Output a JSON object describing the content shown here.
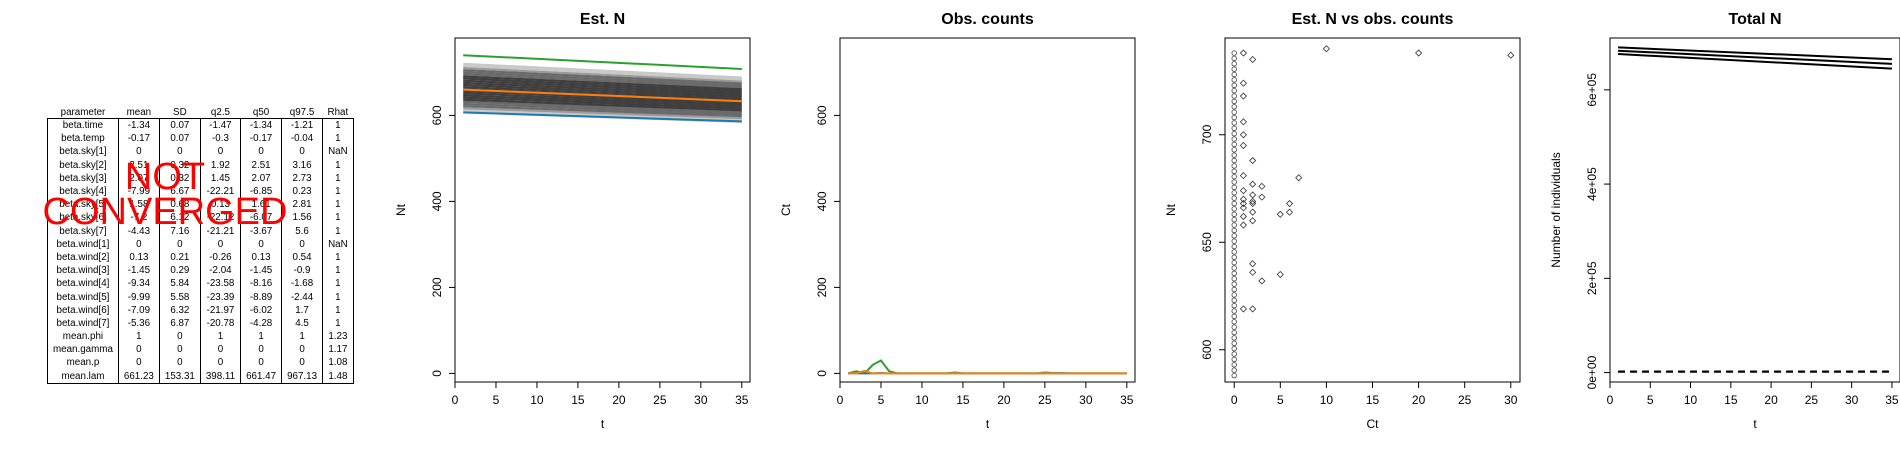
{
  "table": {
    "headers": [
      "parameter",
      "mean",
      "SD",
      "q2.5",
      "q50",
      "q97.5",
      "Rhat"
    ],
    "rows": [
      [
        "beta.time",
        "-1.34",
        "0.07",
        "-1.47",
        "-1.34",
        "-1.21",
        "1"
      ],
      [
        "beta.temp",
        "-0.17",
        "0.07",
        "-0.3",
        "-0.17",
        "-0.04",
        "1"
      ],
      [
        "beta.sky[1]",
        "0",
        "0",
        "0",
        "0",
        "0",
        "NaN"
      ],
      [
        "beta.sky[2]",
        "2.51",
        "0.32",
        "1.92",
        "2.51",
        "3.16",
        "1"
      ],
      [
        "beta.sky[3]",
        "2.07",
        "0.32",
        "1.45",
        "2.07",
        "2.73",
        "1"
      ],
      [
        "beta.sky[4]",
        "-7.99",
        "6.67",
        "-22.21",
        "-6.85",
        "0.23",
        "1"
      ],
      [
        "beta.sky[5]",
        "1.58",
        "0.68",
        "0.13",
        "1.61",
        "2.81",
        "1"
      ],
      [
        "beta.sky[6]",
        "-7.2",
        "6.12",
        "-22.12",
        "-6.07",
        "1.56",
        "1"
      ],
      [
        "beta.sky[7]",
        "-4.43",
        "7.16",
        "-21.21",
        "-3.67",
        "5.6",
        "1"
      ],
      [
        "beta.wind[1]",
        "0",
        "0",
        "0",
        "0",
        "0",
        "NaN"
      ],
      [
        "beta.wind[2]",
        "0.13",
        "0.21",
        "-0.26",
        "0.13",
        "0.54",
        "1"
      ],
      [
        "beta.wind[3]",
        "-1.45",
        "0.29",
        "-2.04",
        "-1.45",
        "-0.9",
        "1"
      ],
      [
        "beta.wind[4]",
        "-9.34",
        "5.84",
        "-23.58",
        "-8.16",
        "-1.68",
        "1"
      ],
      [
        "beta.wind[5]",
        "-9.99",
        "5.58",
        "-23.39",
        "-8.89",
        "-2.44",
        "1"
      ],
      [
        "beta.wind[6]",
        "-7.09",
        "6.32",
        "-21.97",
        "-6.02",
        "1.7",
        "1"
      ],
      [
        "beta.wind[7]",
        "-5.36",
        "6.87",
        "-20.78",
        "-4.28",
        "4.5",
        "1"
      ],
      [
        "mean.phi",
        "1",
        "0",
        "1",
        "1",
        "1",
        "1.23"
      ],
      [
        "mean.gamma",
        "0",
        "0",
        "0",
        "0",
        "0",
        "1.17"
      ],
      [
        "mean.p",
        "0",
        "0",
        "0",
        "0",
        "0",
        "1.08"
      ],
      [
        "mean.lam",
        "661.23",
        "153.31",
        "398.11",
        "661.47",
        "967.13",
        "1.48"
      ]
    ]
  },
  "warning": {
    "line1": "NOT",
    "line2": "CONVERGED",
    "color": "#ff0000"
  },
  "chart_data": [
    {
      "type": "line",
      "title": "Est. N",
      "xlabel": "t",
      "ylabel": "Nt",
      "xlim": [
        0,
        36
      ],
      "ylim": [
        -20,
        780
      ],
      "xticks": [
        0,
        5,
        10,
        15,
        20,
        25,
        30,
        35
      ],
      "yticks": [
        0,
        200,
        400,
        600
      ],
      "grey_band": {
        "x": [
          1,
          35
        ],
        "lower": [
          607,
          585
        ],
        "upper": [
          720,
          688
        ],
        "n_lines": 24,
        "colors": [
          "#3f3f3f",
          "#6a6a6a",
          "#9a9a9a",
          "#c8c8c8"
        ]
      },
      "series": [
        {
          "color": "#2ca02c",
          "x": [
            1,
            35
          ],
          "y": [
            740,
            708
          ]
        },
        {
          "color": "#ff7f0e",
          "x": [
            1,
            35
          ],
          "y": [
            660,
            633
          ]
        },
        {
          "color": "#1f77b4",
          "x": [
            1,
            35
          ],
          "y": [
            607,
            586
          ]
        }
      ]
    },
    {
      "type": "line",
      "title": "Obs. counts",
      "xlabel": "t",
      "ylabel": "Ct",
      "xlim": [
        0,
        36
      ],
      "ylim": [
        -20,
        780
      ],
      "xticks": [
        0,
        5,
        10,
        15,
        20,
        25,
        30,
        35
      ],
      "yticks": [
        0,
        200,
        400,
        600
      ],
      "series": [
        {
          "color": "#2ca02c",
          "x": [
            1,
            2,
            3,
            4,
            5,
            6,
            7,
            8,
            9,
            10,
            11,
            12,
            13,
            14,
            15,
            16,
            17,
            18,
            19,
            20,
            21,
            22,
            23,
            24,
            25,
            26,
            27,
            28,
            29,
            30,
            31,
            32,
            33,
            34,
            35
          ],
          "y": [
            0,
            5,
            0,
            20,
            30,
            5,
            0,
            0,
            0,
            0,
            0,
            0,
            0,
            2,
            0,
            0,
            0,
            0,
            0,
            0,
            0,
            0,
            0,
            0,
            2,
            1,
            0,
            0,
            0,
            0,
            0,
            0,
            0,
            0,
            0
          ]
        },
        {
          "color": "#1f77b4",
          "x": [
            1,
            2,
            3,
            4,
            5,
            6,
            7,
            8,
            9,
            10,
            11,
            12,
            13,
            14,
            15,
            16,
            17,
            18,
            19,
            20,
            21,
            22,
            23,
            24,
            25,
            26,
            27,
            28,
            29,
            30,
            31,
            32,
            33,
            34,
            35
          ],
          "y": [
            0,
            0,
            0,
            0,
            1,
            0,
            0,
            0,
            0,
            0,
            0,
            0,
            0,
            0,
            0,
            0,
            0,
            0,
            0,
            0,
            0,
            0,
            0,
            0,
            0,
            0,
            1,
            0,
            0,
            0,
            0,
            0,
            0,
            0,
            0
          ]
        },
        {
          "color": "#ff7f0e",
          "x": [
            1,
            2,
            3,
            4,
            5,
            6,
            7,
            8,
            9,
            10,
            11,
            12,
            13,
            14,
            15,
            16,
            17,
            18,
            19,
            20,
            21,
            22,
            23,
            24,
            25,
            26,
            27,
            28,
            29,
            30,
            31,
            32,
            33,
            34,
            35
          ],
          "y": [
            0,
            0,
            6,
            0,
            0,
            0,
            0,
            0,
            0,
            0,
            0,
            0,
            0,
            0,
            0,
            0,
            0,
            0,
            0,
            0,
            0,
            0,
            0,
            0,
            0,
            0,
            0,
            0,
            0,
            0,
            0,
            0,
            0,
            0,
            0
          ]
        }
      ]
    },
    {
      "type": "scatter",
      "title": "Est. N vs obs. counts",
      "xlabel": "Ct",
      "ylabel": "Nt",
      "xlim": [
        -1,
        31
      ],
      "ylim": [
        585,
        745
      ],
      "xticks": [
        0,
        5,
        10,
        15,
        20,
        25,
        30
      ],
      "yticks": [
        600,
        650,
        700
      ],
      "column_x": 0,
      "column_y_range": [
        588,
        740
      ],
      "points": [
        [
          1,
          738
        ],
        [
          2,
          735
        ],
        [
          1,
          724
        ],
        [
          1,
          718
        ],
        [
          1,
          706
        ],
        [
          1,
          700
        ],
        [
          1,
          695
        ],
        [
          2,
          688
        ],
        [
          1,
          681
        ],
        [
          2,
          677
        ],
        [
          3,
          676
        ],
        [
          1,
          674
        ],
        [
          2,
          672
        ],
        [
          1,
          670
        ],
        [
          2,
          669
        ],
        [
          1,
          668
        ],
        [
          2,
          668
        ],
        [
          3,
          671
        ],
        [
          1,
          666
        ],
        [
          2,
          664
        ],
        [
          1,
          662
        ],
        [
          2,
          660
        ],
        [
          1,
          658
        ],
        [
          5,
          663
        ],
        [
          6,
          664
        ],
        [
          6,
          668
        ],
        [
          7,
          680
        ],
        [
          2,
          640
        ],
        [
          2,
          636
        ],
        [
          3,
          632
        ],
        [
          5,
          635
        ],
        [
          1,
          619
        ],
        [
          2,
          619
        ],
        [
          10,
          740
        ],
        [
          20,
          738
        ],
        [
          30,
          737
        ]
      ]
    },
    {
      "type": "line",
      "title": "Total N",
      "xlabel": "t",
      "ylabel": "Number of individuals",
      "xlim": [
        0,
        36
      ],
      "ylim": [
        -20000,
        710000
      ],
      "xticks": [
        0,
        5,
        10,
        15,
        20,
        25,
        30,
        35
      ],
      "yticks": [
        0,
        200000,
        400000,
        600000
      ],
      "ytick_labels": [
        "0e+00",
        "2e+05",
        "4e+05",
        "6e+05"
      ],
      "series": [
        {
          "color": "#000000",
          "x": [
            1,
            35
          ],
          "y": [
            690000,
            665000
          ]
        },
        {
          "color": "#000000",
          "x": [
            1,
            35
          ],
          "y": [
            683000,
            655000
          ]
        },
        {
          "color": "#000000",
          "x": [
            1,
            35
          ],
          "y": [
            676000,
            645000
          ]
        },
        {
          "color": "#000000",
          "dash": true,
          "x": [
            1,
            35
          ],
          "y": [
            2000,
            2000
          ]
        }
      ]
    }
  ]
}
